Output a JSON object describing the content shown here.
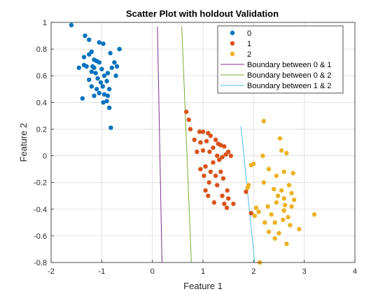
{
  "chart_data": {
    "type": "scatter",
    "title": "Scatter Plot with holdout Validation",
    "xlabel": "Feature 1",
    "ylabel": "Feature 2",
    "xlim": [
      -2,
      4
    ],
    "ylim": [
      -0.8,
      1
    ],
    "xticks": [
      "-2",
      "-1",
      "0",
      "1",
      "2",
      "3",
      "4"
    ],
    "yticks": [
      "-0.8",
      "-0.6",
      "-0.4",
      "-0.2",
      "0",
      "0.2",
      "0.4",
      "0.6",
      "0.8",
      "1"
    ],
    "grid": true,
    "legend_position": "top-right",
    "series": [
      {
        "name": "0",
        "color": "#0072BD",
        "points": [
          [
            -1.6,
            0.98
          ],
          [
            -1.33,
            0.9
          ],
          [
            -1.25,
            0.87
          ],
          [
            -1.2,
            0.78
          ],
          [
            -1.05,
            0.85
          ],
          [
            -0.97,
            0.84
          ],
          [
            -1.25,
            0.76
          ],
          [
            -1.15,
            0.72
          ],
          [
            -1.35,
            0.74
          ],
          [
            -0.83,
            0.77
          ],
          [
            -0.65,
            0.8
          ],
          [
            -1.45,
            0.66
          ],
          [
            -1.3,
            0.67
          ],
          [
            -1.18,
            0.67
          ],
          [
            -1.1,
            0.71
          ],
          [
            -1.05,
            0.7
          ],
          [
            -1.0,
            0.65
          ],
          [
            -0.95,
            0.6
          ],
          [
            -0.88,
            0.62
          ],
          [
            -0.8,
            0.66
          ],
          [
            -0.75,
            0.7
          ],
          [
            -0.7,
            0.67
          ],
          [
            -0.72,
            0.6
          ],
          [
            -1.2,
            0.63
          ],
          [
            -1.12,
            0.62
          ],
          [
            -1.08,
            0.58
          ],
          [
            -1.25,
            0.57
          ],
          [
            -1.35,
            0.68
          ],
          [
            -1.15,
            0.66
          ],
          [
            -1.02,
            0.55
          ],
          [
            -0.98,
            0.52
          ],
          [
            -0.9,
            0.56
          ],
          [
            -0.85,
            0.5
          ],
          [
            -1.1,
            0.5
          ],
          [
            -1.2,
            0.52
          ],
          [
            -1.05,
            0.47
          ],
          [
            -0.95,
            0.46
          ],
          [
            -0.88,
            0.45
          ],
          [
            -1.15,
            0.45
          ],
          [
            -1.38,
            0.43
          ],
          [
            -0.97,
            0.4
          ],
          [
            -0.9,
            0.41
          ],
          [
            -0.85,
            0.36
          ],
          [
            -0.82,
            0.21
          ]
        ]
      },
      {
        "name": "1",
        "color": "#D95319",
        "points": [
          [
            0.67,
            0.33
          ],
          [
            0.72,
            0.27
          ],
          [
            0.75,
            0.2
          ],
          [
            0.93,
            0.18
          ],
          [
            1.0,
            0.18
          ],
          [
            1.1,
            0.17
          ],
          [
            1.15,
            0.15
          ],
          [
            0.83,
            0.12
          ],
          [
            0.95,
            0.1
          ],
          [
            1.07,
            0.11
          ],
          [
            1.25,
            0.12
          ],
          [
            1.3,
            0.09
          ],
          [
            1.35,
            0.08
          ],
          [
            1.42,
            0.07
          ],
          [
            1.2,
            0.06
          ],
          [
            0.88,
            0.03
          ],
          [
            1.0,
            0.04
          ],
          [
            1.13,
            0.03
          ],
          [
            1.28,
            0.0
          ],
          [
            1.45,
            0.01
          ],
          [
            1.38,
            -0.01
          ],
          [
            1.32,
            -0.03
          ],
          [
            1.5,
            0.03
          ],
          [
            1.55,
            0.0
          ],
          [
            1.2,
            -0.05
          ],
          [
            1.05,
            -0.08
          ],
          [
            0.95,
            -0.1
          ],
          [
            1.15,
            -0.12
          ],
          [
            1.25,
            -0.15
          ],
          [
            1.4,
            -0.17
          ],
          [
            1.35,
            -0.12
          ],
          [
            1.02,
            -0.15
          ],
          [
            1.12,
            -0.2
          ],
          [
            1.28,
            -0.22
          ],
          [
            1.48,
            -0.26
          ],
          [
            1.5,
            -0.32
          ],
          [
            1.38,
            -0.3
          ],
          [
            1.42,
            -0.36
          ],
          [
            1.47,
            -0.39
          ],
          [
            1.6,
            -0.36
          ],
          [
            1.85,
            -0.27
          ],
          [
            1.95,
            -0.43
          ],
          [
            1.1,
            -0.3
          ],
          [
            1.05,
            -0.26
          ],
          [
            1.22,
            -0.35
          ]
        ]
      },
      {
        "name": "2",
        "color": "#EDB120",
        "points": [
          [
            2.2,
            0.26
          ],
          [
            2.52,
            0.13
          ],
          [
            2.55,
            0.04
          ],
          [
            2.65,
            0.02
          ],
          [
            2.18,
            0.0
          ],
          [
            2.0,
            -0.06
          ],
          [
            1.95,
            -0.07
          ],
          [
            2.3,
            -0.1
          ],
          [
            2.6,
            -0.12
          ],
          [
            2.78,
            -0.13
          ],
          [
            2.45,
            -0.15
          ],
          [
            2.2,
            -0.2
          ],
          [
            1.9,
            -0.22
          ],
          [
            1.88,
            -0.24
          ],
          [
            2.4,
            -0.25
          ],
          [
            2.55,
            -0.26
          ],
          [
            2.7,
            -0.22
          ],
          [
            2.75,
            -0.28
          ],
          [
            2.48,
            -0.3
          ],
          [
            2.6,
            -0.32
          ],
          [
            2.8,
            -0.33
          ],
          [
            2.45,
            -0.35
          ],
          [
            2.62,
            -0.37
          ],
          [
            2.28,
            -0.38
          ],
          [
            2.05,
            -0.39
          ],
          [
            2.1,
            -0.42
          ],
          [
            2.02,
            -0.45
          ],
          [
            2.35,
            -0.44
          ],
          [
            2.6,
            -0.41
          ],
          [
            2.75,
            -0.38
          ],
          [
            2.68,
            -0.46
          ],
          [
            2.58,
            -0.48
          ],
          [
            2.22,
            -0.5
          ],
          [
            2.42,
            -0.5
          ],
          [
            2.72,
            -0.52
          ],
          [
            2.9,
            -0.55
          ],
          [
            3.2,
            -0.44
          ],
          [
            2.3,
            -0.57
          ],
          [
            2.5,
            -0.58
          ],
          [
            2.42,
            -0.62
          ],
          [
            2.65,
            -0.66
          ],
          [
            2.12,
            -0.8
          ]
        ]
      }
    ],
    "boundaries": [
      {
        "name": "Boundary between 0 & 1",
        "color": "#7E2F8E",
        "points": [
          [
            0.1,
            0.97
          ],
          [
            0.19,
            -0.8
          ]
        ]
      },
      {
        "name": "Boundary between 0 & 2",
        "color": "#77AC30",
        "points": [
          [
            0.58,
            0.97
          ],
          [
            0.77,
            -0.8
          ]
        ]
      },
      {
        "name": "Boundary between 1 & 2",
        "color": "#4DBEEE",
        "points": [
          [
            1.75,
            0.22
          ],
          [
            2.02,
            -0.8
          ]
        ]
      }
    ]
  }
}
